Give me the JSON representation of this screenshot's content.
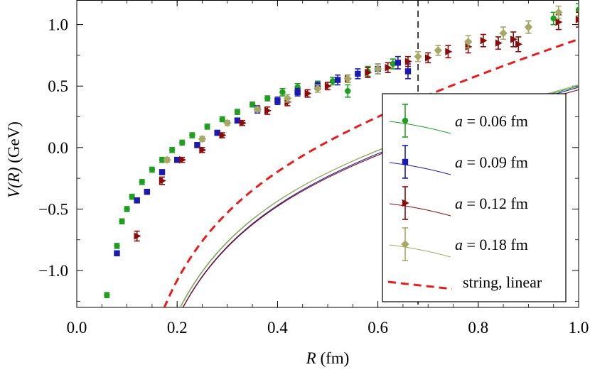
{
  "chart_data": {
    "type": "scatter",
    "title": "",
    "xlabel": {
      "main": "R",
      "unit": " (fm)"
    },
    "ylabel": {
      "main": "V(R)",
      "unit": "  (GeV)"
    },
    "xlim": [
      0.0,
      1.0
    ],
    "ylim": [
      -1.3,
      1.2
    ],
    "x_ticks": [
      {
        "value": 0.0,
        "label": "0.0"
      },
      {
        "value": 0.2,
        "label": "0.2"
      },
      {
        "value": 0.4,
        "label": "0.4"
      },
      {
        "value": 0.6,
        "label": "0.6"
      },
      {
        "value": 0.8,
        "label": "0.8"
      },
      {
        "value": 1.0,
        "label": "1.0"
      }
    ],
    "y_ticks": [
      {
        "value": -1.0,
        "label": "−1.0"
      },
      {
        "value": -0.5,
        "label": "−0.5"
      },
      {
        "value": 0.0,
        "label": "0.0"
      },
      {
        "value": 0.5,
        "label": "0.5"
      },
      {
        "value": 1.0,
        "label": "1.0"
      }
    ],
    "vertical_reference_line": {
      "x": 0.68,
      "style": "dashed",
      "color": "#000000"
    },
    "legend_position": "bottom-right",
    "series": [
      {
        "name": "a = 0.06 fm",
        "label_prefix": "a",
        "label_value": " = 0.06 fm",
        "color": "#1f9e1f",
        "marker": "circle",
        "fit": {
          "A": 0.3,
          "sigma": 0.81,
          "C": -0.01
        },
        "points": [
          [
            0.06,
            -1.2,
            0.02
          ],
          [
            0.08,
            -0.8,
            0.02
          ],
          [
            0.09,
            -0.6,
            0.02
          ],
          [
            0.1,
            -0.5,
            0.02
          ],
          [
            0.11,
            -0.4,
            0.02
          ],
          [
            0.13,
            -0.28,
            0.02
          ],
          [
            0.15,
            -0.18,
            0.02
          ],
          [
            0.17,
            -0.1,
            0.02
          ],
          [
            0.19,
            -0.02,
            0.02
          ],
          [
            0.21,
            0.04,
            0.02
          ],
          [
            0.23,
            0.1,
            0.02
          ],
          [
            0.26,
            0.17,
            0.02
          ],
          [
            0.29,
            0.23,
            0.02
          ],
          [
            0.32,
            0.29,
            0.02
          ],
          [
            0.35,
            0.35,
            0.02
          ],
          [
            0.38,
            0.4,
            0.02
          ],
          [
            0.41,
            0.45,
            0.03
          ],
          [
            0.44,
            0.49,
            0.03
          ],
          [
            0.48,
            0.51,
            0.03
          ],
          [
            0.51,
            0.54,
            0.03
          ],
          [
            0.54,
            0.46,
            0.05
          ],
          [
            0.58,
            0.62,
            0.04
          ],
          [
            0.63,
            0.68,
            0.04
          ],
          [
            0.9,
            0.98,
            0.05
          ],
          [
            0.95,
            1.05,
            0.05
          ],
          [
            1.0,
            1.12,
            0.05
          ]
        ]
      },
      {
        "name": "a = 0.09 fm",
        "label_prefix": "a",
        "label_value": " = 0.09 fm",
        "color": "#1a1ab0",
        "marker": "square",
        "fit": {
          "A": 0.3,
          "sigma": 0.85,
          "C": -0.06
        },
        "points": [
          [
            0.08,
            -0.86,
            0.02
          ],
          [
            0.12,
            -0.43,
            0.02
          ],
          [
            0.14,
            -0.36,
            0.02
          ],
          [
            0.17,
            -0.2,
            0.02
          ],
          [
            0.2,
            -0.1,
            0.02
          ],
          [
            0.24,
            0.02,
            0.02
          ],
          [
            0.28,
            0.12,
            0.02
          ],
          [
            0.32,
            0.22,
            0.02
          ],
          [
            0.36,
            0.31,
            0.03
          ],
          [
            0.4,
            0.38,
            0.03
          ],
          [
            0.44,
            0.45,
            0.03
          ],
          [
            0.48,
            0.5,
            0.03
          ],
          [
            0.52,
            0.55,
            0.04
          ],
          [
            0.56,
            0.6,
            0.04
          ],
          [
            0.6,
            0.64,
            0.04
          ],
          [
            0.64,
            0.69,
            0.05
          ],
          [
            0.66,
            0.62,
            0.06
          ]
        ]
      },
      {
        "name": "a = 0.12 fm",
        "label_prefix": "a",
        "label_value": " = 0.12 fm",
        "color": "#8b0a0a",
        "marker": "triangle-right",
        "fit": {
          "A": 0.3,
          "sigma": 0.83,
          "C": -0.06
        },
        "points": [
          [
            0.12,
            -0.72,
            0.04
          ],
          [
            0.17,
            -0.27,
            0.03
          ],
          [
            0.21,
            -0.1,
            0.02
          ],
          [
            0.25,
            -0.02,
            0.02
          ],
          [
            0.29,
            0.1,
            0.02
          ],
          [
            0.33,
            0.2,
            0.02
          ],
          [
            0.38,
            0.3,
            0.03
          ],
          [
            0.42,
            0.37,
            0.03
          ],
          [
            0.46,
            0.44,
            0.03
          ],
          [
            0.5,
            0.5,
            0.03
          ],
          [
            0.54,
            0.56,
            0.03
          ],
          [
            0.58,
            0.61,
            0.04
          ],
          [
            0.62,
            0.65,
            0.04
          ],
          [
            0.66,
            0.7,
            0.04
          ],
          [
            0.7,
            0.73,
            0.04
          ],
          [
            0.74,
            0.78,
            0.05
          ],
          [
            0.78,
            0.82,
            0.05
          ],
          [
            0.81,
            0.87,
            0.05
          ],
          [
            0.84,
            0.85,
            0.05
          ],
          [
            0.87,
            0.88,
            0.06
          ],
          [
            0.88,
            0.84,
            0.06
          ],
          [
            0.96,
            1.02,
            0.06
          ],
          [
            1.0,
            1.04,
            0.06
          ]
        ]
      },
      {
        "name": "a = 0.18 fm",
        "label_prefix": "a",
        "label_value": " = 0.18 fm",
        "color": "#a8a866",
        "marker": "diamond",
        "fit": {
          "A": 0.3,
          "sigma": 0.83,
          "C": -0.02
        },
        "points": [
          [
            0.18,
            -0.1,
            0.02
          ],
          [
            0.25,
            0.07,
            0.02
          ],
          [
            0.3,
            0.2,
            0.02
          ],
          [
            0.36,
            0.31,
            0.02
          ],
          [
            0.42,
            0.4,
            0.03
          ],
          [
            0.48,
            0.48,
            0.03
          ],
          [
            0.54,
            0.56,
            0.03
          ],
          [
            0.6,
            0.64,
            0.04
          ],
          [
            0.68,
            0.74,
            0.04
          ],
          [
            0.72,
            0.79,
            0.04
          ],
          [
            0.78,
            0.86,
            0.05
          ],
          [
            0.85,
            0.93,
            0.05
          ],
          [
            0.9,
            0.98,
            0.05
          ],
          [
            0.96,
            1.1,
            0.05
          ]
        ]
      }
    ],
    "reference_curve": {
      "name": "string, linear",
      "color": "#e81c1c",
      "style": "dashed",
      "A": 0.2618,
      "sigma": 1.143,
      "C": 0.0
    }
  }
}
